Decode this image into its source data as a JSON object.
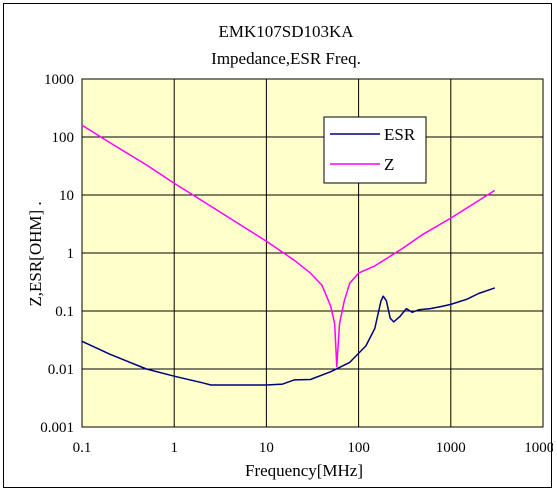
{
  "chart_data": {
    "type": "line",
    "title": "EMK107SD103KA",
    "subtitle": "Impedance,ESR Freq.",
    "xlabel": "Frequency[MHz]",
    "ylabel": "Z,ESR[OHM]  .",
    "x_scale": "log",
    "y_scale": "log",
    "xlim": [
      0.1,
      10000
    ],
    "ylim": [
      0.001,
      1000
    ],
    "x_ticks": [
      "0.1",
      "1",
      "10",
      "100",
      "1000",
      "10000"
    ],
    "y_ticks": [
      "0.001",
      "0.01",
      "0.1",
      "1",
      "10",
      "100",
      "1000"
    ],
    "grid": true,
    "legend_position": "top-right",
    "plot_background": "#ffffcc",
    "series": [
      {
        "name": "ESR",
        "color": "#000080",
        "points": [
          [
            0.1,
            0.03
          ],
          [
            0.2,
            0.018
          ],
          [
            0.5,
            0.01
          ],
          [
            1,
            0.0075
          ],
          [
            2,
            0.0058
          ],
          [
            2.5,
            0.0053
          ],
          [
            5,
            0.0053
          ],
          [
            10,
            0.0053
          ],
          [
            15,
            0.0055
          ],
          [
            20,
            0.0065
          ],
          [
            30,
            0.0066
          ],
          [
            50,
            0.009
          ],
          [
            80,
            0.013
          ],
          [
            120,
            0.025
          ],
          [
            150,
            0.05
          ],
          [
            175,
            0.15
          ],
          [
            185,
            0.18
          ],
          [
            200,
            0.15
          ],
          [
            220,
            0.075
          ],
          [
            240,
            0.065
          ],
          [
            280,
            0.08
          ],
          [
            330,
            0.11
          ],
          [
            380,
            0.095
          ],
          [
            450,
            0.105
          ],
          [
            600,
            0.11
          ],
          [
            800,
            0.12
          ],
          [
            1000,
            0.13
          ],
          [
            1500,
            0.16
          ],
          [
            2000,
            0.2
          ],
          [
            3000,
            0.25
          ]
        ]
      },
      {
        "name": "Z",
        "color": "#ff00ff",
        "points": [
          [
            0.1,
            160
          ],
          [
            0.2,
            80
          ],
          [
            0.5,
            33
          ],
          [
            1,
            16
          ],
          [
            2,
            8
          ],
          [
            5,
            3.2
          ],
          [
            10,
            1.6
          ],
          [
            20,
            0.75
          ],
          [
            30,
            0.45
          ],
          [
            40,
            0.28
          ],
          [
            50,
            0.12
          ],
          [
            55,
            0.06
          ],
          [
            58,
            0.011
          ],
          [
            62,
            0.06
          ],
          [
            70,
            0.15
          ],
          [
            80,
            0.3
          ],
          [
            100,
            0.45
          ],
          [
            150,
            0.6
          ],
          [
            200,
            0.8
          ],
          [
            300,
            1.2
          ],
          [
            500,
            2.1
          ],
          [
            1000,
            4
          ],
          [
            2000,
            8
          ],
          [
            3000,
            12
          ]
        ]
      }
    ]
  }
}
